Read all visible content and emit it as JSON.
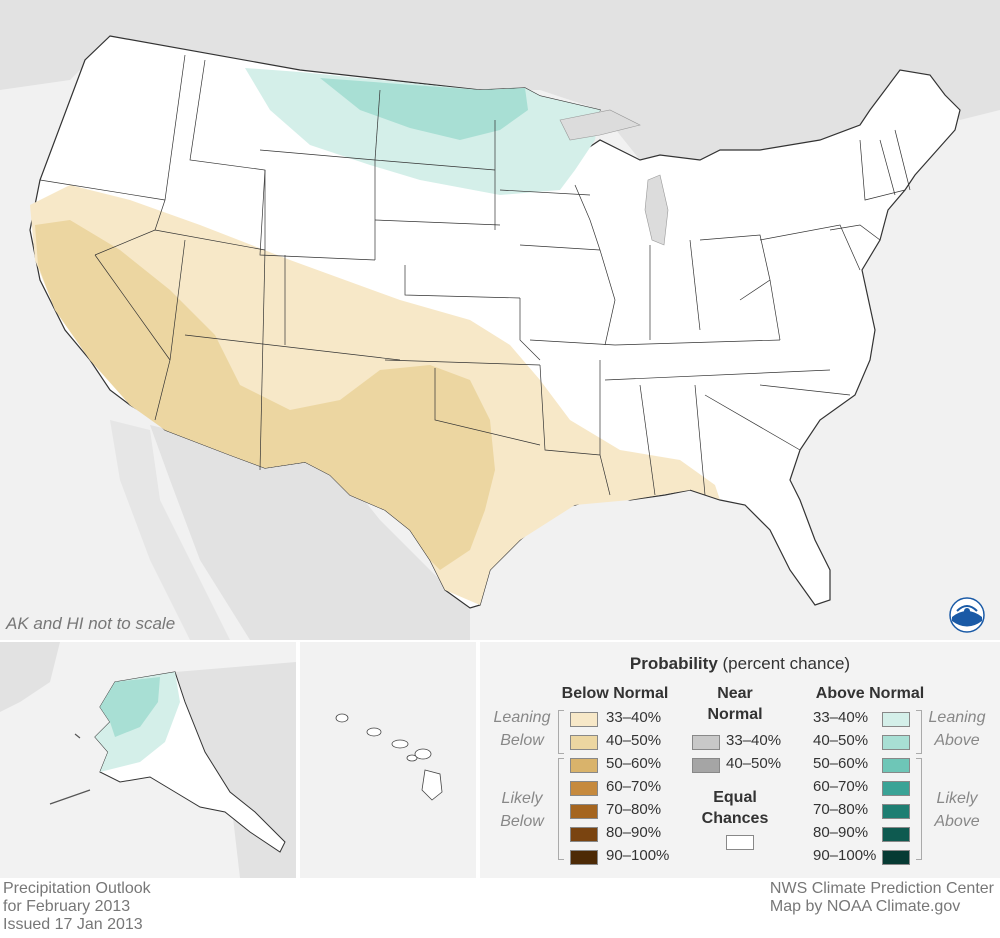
{
  "map": {
    "scale_note": "AK and HI not to scale",
    "logo_icon": "noaa-logo-icon"
  },
  "footer": {
    "left_lines": [
      "Precipitation Outlook",
      "for February 2013",
      "Issued 17 Jan 2013"
    ],
    "right_lines": [
      "NWS Climate Prediction Center",
      "Map by NOAA Climate.gov"
    ]
  },
  "legend": {
    "title_bold": "Probability",
    "title_rest": " (percent chance)",
    "below": {
      "heading": "Below Normal",
      "leaning_label": [
        "Leaning",
        "Below"
      ],
      "likely_label": [
        "Likely",
        "Below"
      ],
      "items": [
        {
          "label": "33–40%",
          "color": "#f7e8c8"
        },
        {
          "label": "40–50%",
          "color": "#ecd6a1"
        },
        {
          "label": "50–60%",
          "color": "#d9b36b"
        },
        {
          "label": "60–70%",
          "color": "#c68a3e"
        },
        {
          "label": "70–80%",
          "color": "#a5651f"
        },
        {
          "label": "80–90%",
          "color": "#7a4410"
        },
        {
          "label": "90–100%",
          "color": "#4d2a06"
        }
      ]
    },
    "near": {
      "heading": [
        "Near",
        "Normal"
      ],
      "items": [
        {
          "label": "33–40%",
          "color": "#c8c8c8"
        },
        {
          "label": "40–50%",
          "color": "#a5a5a5"
        }
      ],
      "equal_heading": [
        "Equal",
        "Chances"
      ],
      "equal_color": "#ffffff"
    },
    "above": {
      "heading": "Above Normal",
      "leaning_label": [
        "Leaning",
        "Above"
      ],
      "likely_label": [
        "Likely",
        "Above"
      ],
      "items": [
        {
          "label": "33–40%",
          "color": "#d4efe9"
        },
        {
          "label": "40–50%",
          "color": "#a8dfd4"
        },
        {
          "label": "50–60%",
          "color": "#6ec6b7"
        },
        {
          "label": "60–70%",
          "color": "#3aa396"
        },
        {
          "label": "70–80%",
          "color": "#1e7e72"
        },
        {
          "label": "80–90%",
          "color": "#0e5a50"
        },
        {
          "label": "90–100%",
          "color": "#063a33"
        }
      ]
    }
  }
}
